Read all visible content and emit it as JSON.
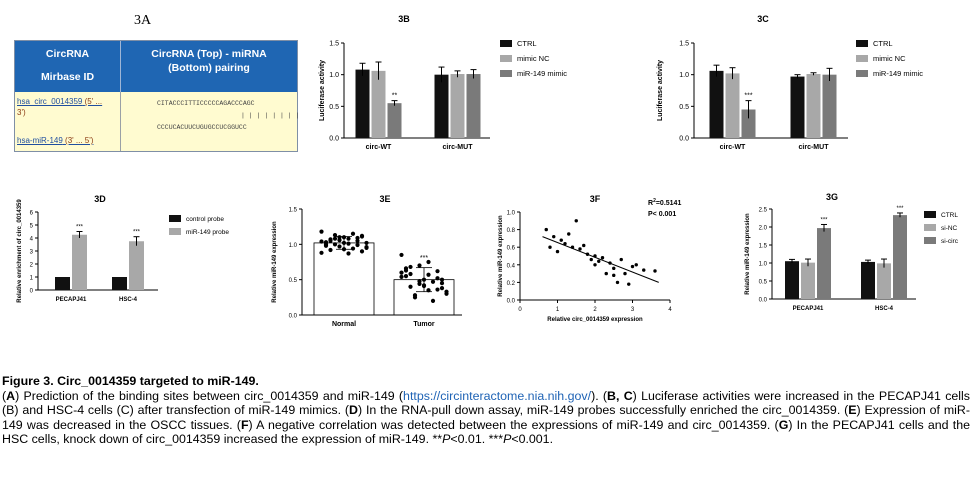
{
  "figure": {
    "caption_title": "Figure 3. Circ_0014359 targeted to miR-149.",
    "caption_segments": [
      {
        "t": "(",
        "s": "n"
      },
      {
        "t": "A",
        "s": "b"
      },
      {
        "t": ") Prediction of the binding sites between circ_0014359 and miR-149 (",
        "s": "n"
      },
      {
        "t": "https://circinteractome.nia.nih.gov/",
        "s": "a"
      },
      {
        "t": "). (",
        "s": "n"
      },
      {
        "t": "B, C",
        "s": "b"
      },
      {
        "t": ") Luciferase activities were increased in the PECAPJ41 cells (B) and HSC-4 cells (C) after transfection of miR-149 mimics. (",
        "s": "n"
      },
      {
        "t": "D",
        "s": "b"
      },
      {
        "t": ") In the RNA-pull down assay, miR-149 probes successfully enriched the circ_0014359. (",
        "s": "n"
      },
      {
        "t": "E",
        "s": "b"
      },
      {
        "t": ") Expression of miR-149 was decreased in the OSCC tissues. (",
        "s": "n"
      },
      {
        "t": "F",
        "s": "b"
      },
      {
        "t": ") A negative correlation was detected between the expressions of miR-149 and circ_0014359. (",
        "s": "n"
      },
      {
        "t": "G",
        "s": "b"
      },
      {
        "t": ") In the PECAPJ41 cells and the HSC cells, knock down of circ_0014359 increased the expression of miR-149. **",
        "s": "n"
      },
      {
        "t": "P",
        "s": "i"
      },
      {
        "t": "<0.01. ***",
        "s": "n"
      },
      {
        "t": "P",
        "s": "i"
      },
      {
        "t": "<0.001.",
        "s": "n"
      }
    ]
  },
  "panel_a": {
    "label": "3A",
    "header_col1_line1": "CircRNA",
    "header_col1_line2": "Mirbase ID",
    "header_col2_line1": "CircRNA (Top) - miRNA",
    "header_col2_line2": "(Bottom) pairing",
    "row1_id": "hsa_circ_0014359",
    "row1_ends": "(5' ...",
    "row1_ends2": "3')",
    "row2_id": "hsa-miR-149",
    "row2_ends": "(3' ... 5')",
    "seq_top": "CITACCCITTICCCCCAGACCCAGC",
    "seq_pairs": "| | | | | | | |",
    "seq_bottom": "CCCUCACUUCUGUGCCUCGGUCC"
  },
  "chart_data": [
    {
      "id": "3B",
      "type": "bar",
      "title": "3B",
      "ylabel": "Luciferase activity",
      "xlabel": "",
      "ylim": [
        0,
        1.5
      ],
      "yticks": [
        0,
        0.5,
        1.0,
        1.5
      ],
      "ytick_labels": [
        "0.0",
        "0.5",
        "1.0",
        "1.5"
      ],
      "categories": [
        "circ-WT",
        "circ-MUT"
      ],
      "series": [
        {
          "name": "CTRL",
          "color": "#111111",
          "values": [
            1.08,
            1.0
          ],
          "errors": [
            0.1,
            0.12
          ]
        },
        {
          "name": "mimic NC",
          "color": "#a8a8a8",
          "values": [
            1.06,
            1.01
          ],
          "errors": [
            0.14,
            0.05
          ]
        },
        {
          "name": "miR-149 mimic",
          "color": "#7a7a7a",
          "values": [
            0.55,
            1.01
          ],
          "errors": [
            0.04,
            0.07
          ]
        }
      ],
      "annotations": [
        {
          "category": 0,
          "series": 2,
          "text": "**"
        }
      ],
      "legend_position": "right"
    },
    {
      "id": "3C",
      "type": "bar",
      "title": "3C",
      "ylabel": "Luciferase activity",
      "xlabel": "",
      "ylim": [
        0,
        1.5
      ],
      "yticks": [
        0,
        0.5,
        1.0,
        1.5
      ],
      "ytick_labels": [
        "0.0",
        "0.5",
        "1.0",
        "1.5"
      ],
      "categories": [
        "circ-WT",
        "circ-MUT"
      ],
      "series": [
        {
          "name": "CTRL",
          "color": "#111111",
          "values": [
            1.06,
            0.97
          ],
          "errors": [
            0.09,
            0.03
          ]
        },
        {
          "name": "mimic NC",
          "color": "#a8a8a8",
          "values": [
            1.02,
            1.01
          ],
          "errors": [
            0.09,
            0.02
          ]
        },
        {
          "name": "miR-149 mimic",
          "color": "#7a7a7a",
          "values": [
            0.45,
            1.0
          ],
          "errors": [
            0.14,
            0.1
          ]
        }
      ],
      "annotations": [
        {
          "category": 0,
          "series": 2,
          "text": "***"
        }
      ],
      "legend_position": "right"
    },
    {
      "id": "3D",
      "type": "bar",
      "title": "3D",
      "ylabel": "Relative enrichment of circ_0014359",
      "xlabel": "",
      "ylim": [
        0,
        6
      ],
      "yticks": [
        0,
        1,
        2,
        3,
        4,
        5,
        6
      ],
      "ytick_labels": [
        "0",
        "1",
        "2",
        "3",
        "4",
        "5",
        "6"
      ],
      "categories": [
        "PECAPJ41",
        "HSC-4"
      ],
      "series": [
        {
          "name": "control probe",
          "color": "#111111",
          "values": [
            1.0,
            1.0
          ],
          "errors": [
            0,
            0
          ]
        },
        {
          "name": "miR-149 probe",
          "color": "#a8a8a8",
          "values": [
            4.25,
            3.75
          ],
          "errors": [
            0.25,
            0.35
          ]
        }
      ],
      "annotations": [
        {
          "category": 0,
          "series": 1,
          "text": "***"
        },
        {
          "category": 1,
          "series": 1,
          "text": "***"
        }
      ],
      "legend_position": "right"
    },
    {
      "id": "3E",
      "type": "scatter",
      "title": "3E",
      "ylabel": "Relative miR-149 expression",
      "xlabel": "",
      "ylim": [
        0,
        1.5
      ],
      "yticks": [
        0,
        0.5,
        1.0,
        1.5
      ],
      "ytick_labels": [
        "0.0",
        "0.5",
        "1.0",
        "1.5"
      ],
      "categories": [
        "Normal",
        "Tumor"
      ],
      "means": [
        1.02,
        0.5
      ],
      "sd": [
        0.09,
        0.17
      ],
      "points": [
        [
          1.18,
          1.1,
          1.05,
          0.98,
          1.02,
          1.12,
          0.92,
          1.08,
          0.95,
          1.0,
          1.15,
          0.88,
          1.06,
          0.99,
          1.03,
          1.1,
          0.9,
          1.07,
          1.01,
          0.96,
          1.13,
          0.94,
          1.04,
          0.97,
          1.09,
          1.0,
          0.93,
          1.11,
          1.05,
          0.87,
          1.02,
          1.08
        ],
        [
          0.85,
          0.7,
          0.62,
          0.55,
          0.5,
          0.45,
          0.4,
          0.35,
          0.3,
          0.25,
          0.2,
          0.6,
          0.48,
          0.52,
          0.66,
          0.42,
          0.38,
          0.58,
          0.75,
          0.33,
          0.28,
          0.47,
          0.54,
          0.44,
          0.36,
          0.63,
          0.41,
          0.5,
          0.68,
          0.57
        ]
      ],
      "annotations": [
        {
          "category": 1,
          "text": "***"
        }
      ]
    },
    {
      "id": "3F",
      "type": "scatter",
      "title": "3F",
      "ylabel": "Relative miR-149 expression",
      "xlabel": "Relative circ_0014359 expression",
      "xlim": [
        0,
        4
      ],
      "ylim": [
        0,
        1.0
      ],
      "xticks": [
        0,
        1,
        2,
        3,
        4
      ],
      "xtick_labels": [
        "0",
        "1",
        "2",
        "3",
        "4"
      ],
      "yticks": [
        0,
        0.2,
        0.4,
        0.6,
        0.8,
        1.0
      ],
      "ytick_labels": [
        "0.0",
        "0.2",
        "0.4",
        "0.6",
        "0.8",
        "1.0"
      ],
      "points": [
        [
          0.7,
          0.8
        ],
        [
          0.8,
          0.6
        ],
        [
          0.9,
          0.72
        ],
        [
          1.0,
          0.55
        ],
        [
          1.1,
          0.68
        ],
        [
          1.3,
          0.75
        ],
        [
          1.4,
          0.6
        ],
        [
          1.5,
          0.9
        ],
        [
          1.6,
          0.58
        ],
        [
          1.7,
          0.62
        ],
        [
          1.8,
          0.52
        ],
        [
          1.9,
          0.46
        ],
        [
          2.0,
          0.5
        ],
        [
          2.1,
          0.44
        ],
        [
          2.2,
          0.48
        ],
        [
          2.3,
          0.3
        ],
        [
          2.4,
          0.42
        ],
        [
          2.5,
          0.36
        ],
        [
          2.6,
          0.2
        ],
        [
          2.7,
          0.46
        ],
        [
          2.8,
          0.3
        ],
        [
          2.9,
          0.18
        ],
        [
          3.0,
          0.38
        ],
        [
          3.1,
          0.4
        ],
        [
          3.3,
          0.34
        ],
        [
          3.6,
          0.33
        ],
        [
          2.5,
          0.28
        ],
        [
          1.2,
          0.64
        ],
        [
          2.0,
          0.4
        ]
      ],
      "fit": {
        "x": [
          0.6,
          3.7
        ],
        "y": [
          0.72,
          0.2
        ]
      },
      "stats_line1": "=0.5141",
      "stats_r2_label": "R",
      "stats_line2": "P< 0.001"
    },
    {
      "id": "3G",
      "type": "bar",
      "title": "3G",
      "ylabel": "Relative miR-149 expression",
      "xlabel": "",
      "ylim": [
        0,
        2.5
      ],
      "yticks": [
        0,
        0.5,
        1.0,
        1.5,
        2.0,
        2.5
      ],
      "ytick_labels": [
        "0.0",
        "0.5",
        "1.0",
        "1.5",
        "2.0",
        "2.5"
      ],
      "categories": [
        "PECAPJ41",
        "HSC-4"
      ],
      "series": [
        {
          "name": "CTRL",
          "color": "#111111",
          "values": [
            1.05,
            1.03
          ],
          "errors": [
            0.05,
            0.05
          ]
        },
        {
          "name": "si-NC",
          "color": "#a8a8a8",
          "values": [
            1.01,
            0.99
          ],
          "errors": [
            0.1,
            0.12
          ]
        },
        {
          "name": "si-circ",
          "color": "#7a7a7a",
          "values": [
            1.97,
            2.33
          ],
          "errors": [
            0.1,
            0.06
          ]
        }
      ],
      "annotations": [
        {
          "category": 0,
          "series": 2,
          "text": "***"
        },
        {
          "category": 1,
          "series": 2,
          "text": "***"
        }
      ],
      "legend_position": "right"
    }
  ]
}
